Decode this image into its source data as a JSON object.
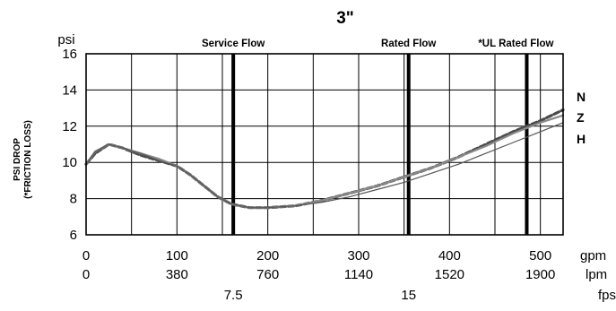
{
  "chart_data": {
    "type": "line",
    "title": "3\"",
    "y_unit": "psi",
    "ylabel_line1": "PSI DROP",
    "ylabel_line2": "(*FRICTION LOSS)",
    "ylim": [
      6,
      16
    ],
    "yticks": [
      6,
      8,
      10,
      12,
      14,
      16
    ],
    "xlim": [
      0,
      525
    ],
    "x_unit": "gpm",
    "xticks_gpm": [
      0,
      100,
      200,
      300,
      400,
      500
    ],
    "xticks_lpm": [
      "0",
      "380",
      "760",
      "1140",
      "1520",
      "1900"
    ],
    "x_unit_lpm": "lpm",
    "fps_ticks": [
      {
        "gpm": 162,
        "label": "7.5"
      },
      {
        "gpm": 355,
        "label": "15"
      }
    ],
    "x_unit_fps": "fps",
    "grid": true,
    "markers": [
      {
        "label": "Service Flow",
        "gpm": 162
      },
      {
        "label": "Rated Flow",
        "gpm": 355
      },
      {
        "label": "*UL Rated Flow",
        "gpm": 485
      }
    ],
    "series": [
      {
        "name": "N",
        "style": "dashed",
        "x": [
          0,
          10,
          25,
          40,
          60,
          80,
          100,
          115,
          130,
          145,
          160,
          180,
          200,
          230,
          260,
          290,
          320,
          350,
          380,
          410,
          440,
          470,
          500,
          525
        ],
        "y": [
          9.9,
          10.5,
          11.0,
          10.8,
          10.4,
          10.1,
          9.8,
          9.3,
          8.7,
          8.1,
          7.7,
          7.5,
          7.5,
          7.6,
          7.9,
          8.3,
          8.7,
          9.2,
          9.7,
          10.3,
          11.0,
          11.7,
          12.3,
          12.9
        ]
      },
      {
        "name": "Z",
        "style": "solid",
        "x": [
          0,
          10,
          25,
          40,
          60,
          80,
          100,
          115,
          130,
          145,
          160,
          180,
          200,
          230,
          260,
          290,
          320,
          350,
          380,
          410,
          440,
          470,
          500,
          525
        ],
        "y": [
          9.9,
          10.6,
          11.0,
          10.8,
          10.5,
          10.2,
          9.8,
          9.3,
          8.7,
          8.1,
          7.7,
          7.5,
          7.5,
          7.6,
          7.9,
          8.3,
          8.7,
          9.2,
          9.7,
          10.3,
          10.9,
          11.6,
          12.2,
          12.6
        ]
      },
      {
        "name": "H",
        "style": "solid",
        "x": [
          0,
          10,
          25,
          40,
          60,
          80,
          100,
          115,
          130,
          145,
          160,
          180,
          200,
          230,
          260,
          290,
          320,
          350,
          380,
          410,
          440,
          470,
          500,
          525
        ],
        "y": [
          9.9,
          10.6,
          11.0,
          10.8,
          10.5,
          10.1,
          9.8,
          9.3,
          8.7,
          8.1,
          7.7,
          7.5,
          7.5,
          7.6,
          7.8,
          8.1,
          8.5,
          8.9,
          9.4,
          9.9,
          10.5,
          11.1,
          11.7,
          12.2
        ]
      }
    ]
  }
}
